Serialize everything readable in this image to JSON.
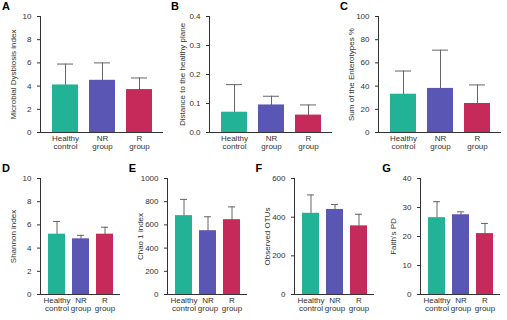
{
  "chart_data": [
    {
      "type": "bar",
      "title": "A",
      "y_label": "Microbial Dysbiosis index",
      "categories": [
        "Healthy control",
        "NR group",
        "R group"
      ],
      "colors": [
        "#22b396",
        "#5a56b3",
        "#c62a5b"
      ],
      "values": [
        4.1,
        4.5,
        3.7
      ],
      "errors": [
        1.8,
        1.5,
        1.0
      ],
      "ylim": [
        0,
        10
      ],
      "yticks": [
        0,
        2,
        4,
        6,
        8,
        10
      ]
    },
    {
      "type": "bar",
      "title": "B",
      "y_label": "Distance to the healthy plane",
      "categories": [
        "Healthy control",
        "NR group",
        "R group"
      ],
      "colors": [
        "#22b396",
        "#5a56b3",
        "#c62a5b"
      ],
      "values": [
        0.07,
        0.095,
        0.06
      ],
      "errors": [
        0.095,
        0.03,
        0.035
      ],
      "ylim": [
        0,
        0.4
      ],
      "yticks": [
        {
          "value": 0,
          "label": "0.0"
        },
        0.1,
        0.2,
        0.3,
        0.4
      ]
    },
    {
      "type": "bar",
      "title": "C",
      "y_label": "Sum of the Enterotypes %",
      "categories": [
        "Healthy control",
        "NR group",
        "R group"
      ],
      "colors": [
        "#22b396",
        "#5a56b3",
        "#c62a5b"
      ],
      "values": [
        33,
        38,
        25
      ],
      "errors": [
        20,
        33,
        16
      ],
      "ylim": [
        0,
        100
      ],
      "yticks": [
        0,
        20,
        40,
        60,
        80,
        100
      ]
    },
    {
      "type": "bar",
      "title": "D",
      "y_label": "Shannon index",
      "categories": [
        "Healthy control",
        "NR group",
        "R group"
      ],
      "colors": [
        "#22b396",
        "#5a56b3",
        "#c62a5b"
      ],
      "values": [
        5.2,
        4.8,
        5.2
      ],
      "errors": [
        1.1,
        0.3,
        0.6
      ],
      "ylim": [
        0,
        10
      ],
      "yticks": [
        0,
        2,
        4,
        6,
        8,
        10
      ]
    },
    {
      "type": "bar",
      "title": "E",
      "y_label": "Chao 1 index",
      "categories": [
        "Healthy control",
        "NR group",
        "R group"
      ],
      "colors": [
        "#22b396",
        "#5a56b3",
        "#c62a5b"
      ],
      "values": [
        680,
        550,
        645
      ],
      "errors": [
        140,
        120,
        110
      ],
      "ylim": [
        0,
        1000
      ],
      "yticks": [
        0,
        200,
        400,
        600,
        800,
        1000
      ]
    },
    {
      "type": "bar",
      "title": "F",
      "y_label": "Observed OTUs",
      "categories": [
        "Healthy control",
        "NR group",
        "R group"
      ],
      "colors": [
        "#22b396",
        "#5a56b3",
        "#c62a5b"
      ],
      "values": [
        420,
        440,
        355
      ],
      "errors": [
        95,
        25,
        60
      ],
      "ylim": [
        0,
        600
      ],
      "yticks": [
        0,
        200,
        400,
        600
      ]
    },
    {
      "type": "bar",
      "title": "G",
      "y_label": "Faith's PD",
      "categories": [
        "Healthy control",
        "NR group",
        "R group"
      ],
      "colors": [
        "#22b396",
        "#5a56b3",
        "#c62a5b"
      ],
      "values": [
        26.5,
        27.5,
        21
      ],
      "errors": [
        5.5,
        1,
        3.5
      ],
      "ylim": [
        0,
        40
      ],
      "yticks": [
        0,
        10,
        20,
        30,
        40
      ]
    }
  ]
}
